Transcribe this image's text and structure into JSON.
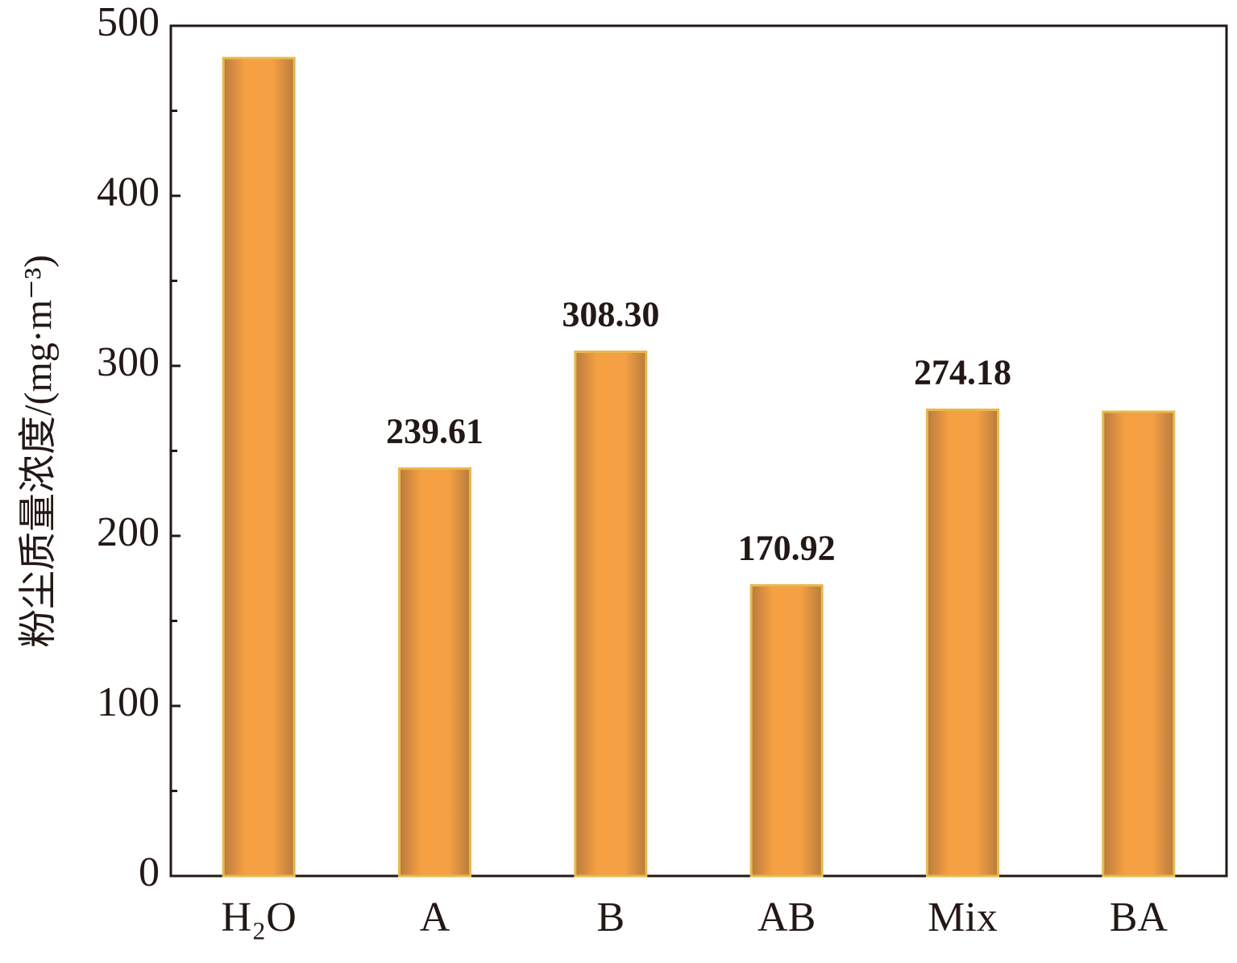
{
  "chart_data": {
    "type": "bar",
    "y_label": "粉尘质量浓度/(mg·m⁻³)",
    "categories": [
      "H₂O",
      "A",
      "B",
      "AB",
      "Mix",
      "BA"
    ],
    "values": [
      481,
      239.61,
      308.3,
      170.92,
      274.18,
      273
    ],
    "value_labels": [
      null,
      "239.61",
      "308.30",
      "170.92",
      "274.18",
      null
    ],
    "color": "#f4a043",
    "ylim": [
      0,
      500
    ],
    "yticks": [
      0,
      100,
      200,
      300,
      400,
      500
    ],
    "minor_yticks": [
      50,
      150,
      250,
      350,
      450
    ],
    "grid": false
  }
}
